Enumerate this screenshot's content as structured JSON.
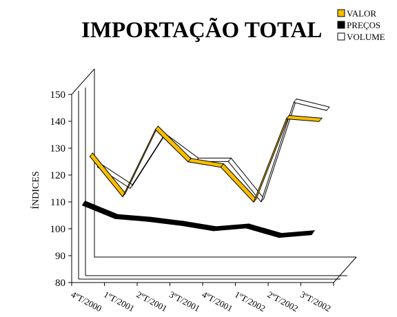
{
  "chart_data": {
    "type": "line",
    "title": "IMPORTAÇÃO TOTAL",
    "ylabel": "ÍNDICES",
    "xlabel": "",
    "categories": [
      "4ºT/2000",
      "1ºT/2001",
      "2ºT/2001",
      "3ºT/2001",
      "4ºT/2001",
      "1ºT/2002",
      "2ºT/2002",
      "3ºT/2002"
    ],
    "ylim": [
      80,
      150
    ],
    "yticks": [
      80,
      90,
      100,
      110,
      120,
      130,
      140,
      150
    ],
    "legend_position": "top-right",
    "style": "3d-ribbon",
    "series": [
      {
        "name": "VALOR",
        "color": "#F5BE00",
        "values": [
          123,
          108,
          133,
          121,
          119,
          106,
          137,
          136
        ]
      },
      {
        "name": "PREÇOS",
        "color": "#000000",
        "values": [
          108,
          103,
          102,
          100.5,
          98.5,
          99.5,
          96,
          97
        ]
      },
      {
        "name": "VOLUME",
        "color": "#FFFFFF",
        "values": [
          116,
          108,
          127,
          118,
          118,
          103,
          140,
          137
        ]
      }
    ]
  }
}
